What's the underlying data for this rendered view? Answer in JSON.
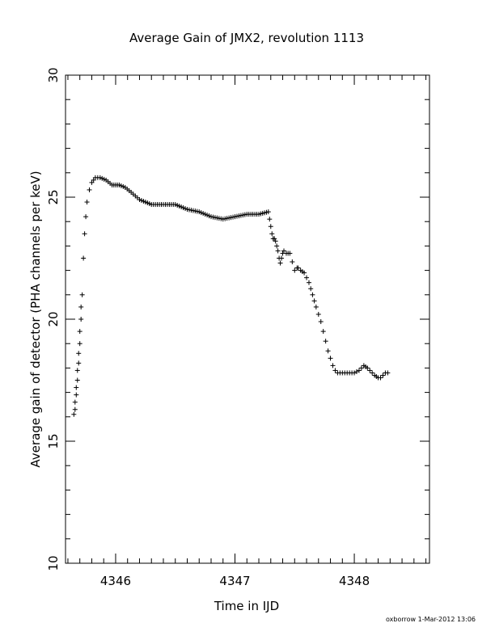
{
  "chart_data": {
    "type": "scatter",
    "marker": "plus",
    "title": "Average Gain of JMX2, revolution 1113",
    "xlabel": "Time in IJD",
    "ylabel": "Average gain of detector (PHA channels per keV)",
    "xlim": [
      4345.58,
      4348.63
    ],
    "ylim": [
      10,
      30
    ],
    "xticks": [
      4346,
      4347,
      4348
    ],
    "yticks": [
      10,
      15,
      20,
      25,
      30
    ],
    "xtick_labels": [
      "4346",
      "4347",
      "4348"
    ],
    "ytick_labels": [
      "10",
      "15",
      "20",
      "25",
      "30"
    ],
    "grid": false,
    "series": [
      {
        "x": [
          4345.65,
          4345.66,
          4345.66,
          4345.67,
          4345.67,
          4345.68,
          4345.68,
          4345.69,
          4345.69,
          4345.7,
          4345.7,
          4345.71,
          4345.71,
          4345.72,
          4345.73,
          4345.74,
          4345.75,
          4345.76,
          4345.78,
          4345.8,
          4345.83,
          4345.87,
          4345.92,
          4345.97,
          4346.03,
          4346.08,
          4346.13,
          4346.2,
          4346.3,
          4346.4,
          4346.5,
          4346.55,
          4346.6,
          4346.7,
          4346.75,
          4346.8,
          4346.9,
          4347.0,
          4347.1,
          4347.2,
          4347.28,
          4347.29,
          4347.3,
          4347.31,
          4347.32,
          4347.33,
          4347.34,
          4347.35,
          4347.36,
          4347.37,
          4347.38,
          4347.39,
          4347.4,
          4347.41,
          4347.43,
          4347.46,
          4347.5,
          4347.52,
          4347.53,
          4347.55,
          4347.58,
          4347.62,
          4347.65,
          4347.68,
          4347.7,
          4347.72,
          4347.74,
          4347.76,
          4347.78,
          4347.8,
          4347.82,
          4347.84,
          4347.86,
          4347.88,
          4347.92,
          4347.96,
          4348.0,
          4348.04,
          4348.08,
          4348.11,
          4348.13,
          4348.15,
          4348.17,
          4348.2,
          4348.22,
          4348.24,
          4348.26,
          4348.28
        ],
        "y": [
          16.1,
          16.3,
          16.6,
          16.9,
          17.2,
          17.5,
          17.9,
          18.2,
          18.6,
          19.0,
          19.5,
          20.0,
          20.5,
          21.0,
          22.5,
          23.5,
          24.2,
          24.8,
          25.3,
          25.6,
          25.8,
          25.8,
          25.7,
          25.5,
          25.5,
          25.4,
          25.2,
          24.9,
          24.7,
          24.7,
          24.7,
          24.6,
          24.5,
          24.4,
          24.3,
          24.2,
          24.1,
          24.2,
          24.3,
          24.3,
          24.4,
          24.1,
          23.8,
          23.5,
          23.3,
          23.3,
          23.2,
          23.0,
          22.8,
          22.5,
          22.3,
          22.5,
          22.7,
          22.8,
          22.7,
          22.7,
          22.0,
          22.1,
          22.1,
          22.0,
          21.9,
          21.5,
          21.0,
          20.5,
          20.2,
          19.9,
          19.5,
          19.1,
          18.7,
          18.4,
          18.1,
          17.9,
          17.8,
          17.8,
          17.8,
          17.8,
          17.8,
          17.9,
          18.1,
          18.0,
          17.9,
          17.8,
          17.7,
          17.6,
          17.6,
          17.7,
          17.8,
          17.8
        ]
      }
    ]
  },
  "footer": {
    "credit": "oxborrow  1-Mar-2012 13:06"
  }
}
